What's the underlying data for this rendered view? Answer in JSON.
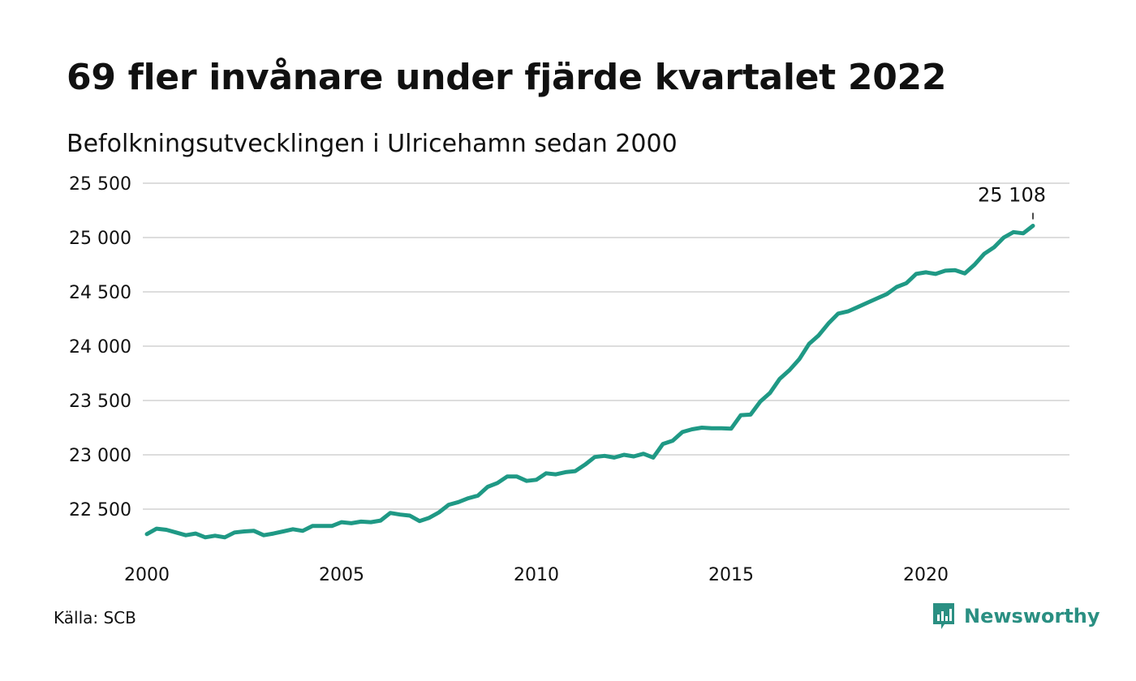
{
  "title": "69 fler invånare under fjärde kvartalet 2022",
  "subtitle": "Befolkningsutvecklingen i Ulricehamn sedan 2000",
  "source": "Källa: SCB",
  "brand": {
    "name": "Newsworthy",
    "icon": "chart-bubble-icon",
    "color": "#2a8f82"
  },
  "chart_data": {
    "type": "line",
    "y_ticks": [
      22500,
      23000,
      23500,
      24000,
      24500,
      25000,
      25500
    ],
    "y_tick_labels": [
      "22 500",
      "23 000",
      "23 500",
      "24 000",
      "24 500",
      "25 000",
      "25 500"
    ],
    "x_ticks": [
      2000,
      2005,
      2010,
      2015,
      2020
    ],
    "x_tick_labels": [
      "2000",
      "2005",
      "2010",
      "2015",
      "2020"
    ],
    "ylim": [
      22200,
      25500
    ],
    "xlim": [
      2000,
      2023.8
    ],
    "grid": true,
    "line_color": "#1f9985",
    "annotation": {
      "text": "25 108",
      "x": 2022.75,
      "y": 25108
    },
    "series": [
      {
        "x": [
          2000.0,
          2000.25,
          2000.5,
          2000.75,
          2001.0,
          2001.25,
          2001.5,
          2001.75,
          2002.0,
          2002.25,
          2002.5,
          2002.75,
          2003.0,
          2003.25,
          2003.5,
          2003.75,
          2004.0,
          2004.25,
          2004.5,
          2004.75,
          2005.0,
          2005.25,
          2005.5,
          2005.75,
          2006.0,
          2006.25,
          2006.5,
          2006.75,
          2007.0,
          2007.25,
          2007.5,
          2007.75,
          2008.0,
          2008.25,
          2008.5,
          2008.75,
          2009.0,
          2009.25,
          2009.5,
          2009.75,
          2010.0,
          2010.25,
          2010.5,
          2010.75,
          2011.0,
          2011.25,
          2011.5,
          2011.75,
          2012.0,
          2012.25,
          2012.5,
          2012.75,
          2013.0,
          2013.25,
          2013.5,
          2013.75,
          2014.0,
          2014.25,
          2014.5,
          2014.75,
          2015.0,
          2015.25,
          2015.5,
          2015.75,
          2016.0,
          2016.25,
          2016.5,
          2016.75,
          2017.0,
          2017.25,
          2017.5,
          2017.75,
          2018.0,
          2018.25,
          2018.5,
          2018.75,
          2019.0,
          2019.25,
          2019.5,
          2019.75,
          2020.0,
          2020.25,
          2020.5,
          2020.75,
          2021.0,
          2021.25,
          2021.5,
          2021.75,
          2022.0,
          2022.25,
          2022.5,
          2022.75
        ],
        "values": [
          22270,
          22320,
          22310,
          22285,
          22260,
          22275,
          22240,
          22255,
          22240,
          22285,
          22295,
          22300,
          22260,
          22275,
          22295,
          22315,
          22300,
          22345,
          22345,
          22345,
          22380,
          22370,
          22385,
          22380,
          22395,
          22465,
          22450,
          22440,
          22390,
          22420,
          22470,
          22540,
          22565,
          22600,
          22625,
          22705,
          22740,
          22800,
          22800,
          22760,
          22770,
          22830,
          22820,
          22840,
          22850,
          22910,
          22980,
          22990,
          22975,
          23000,
          22985,
          23010,
          22975,
          23100,
          23130,
          23210,
          23235,
          23250,
          23245,
          23245,
          23240,
          23365,
          23370,
          23490,
          23570,
          23700,
          23780,
          23880,
          24020,
          24100,
          24210,
          24300,
          24320,
          24360,
          24400,
          24440,
          24480,
          24545,
          24580,
          24665,
          24680,
          24665,
          24695,
          24700,
          24670,
          24750,
          24850,
          24910,
          25000,
          25050,
          25039,
          25108
        ]
      }
    ]
  }
}
